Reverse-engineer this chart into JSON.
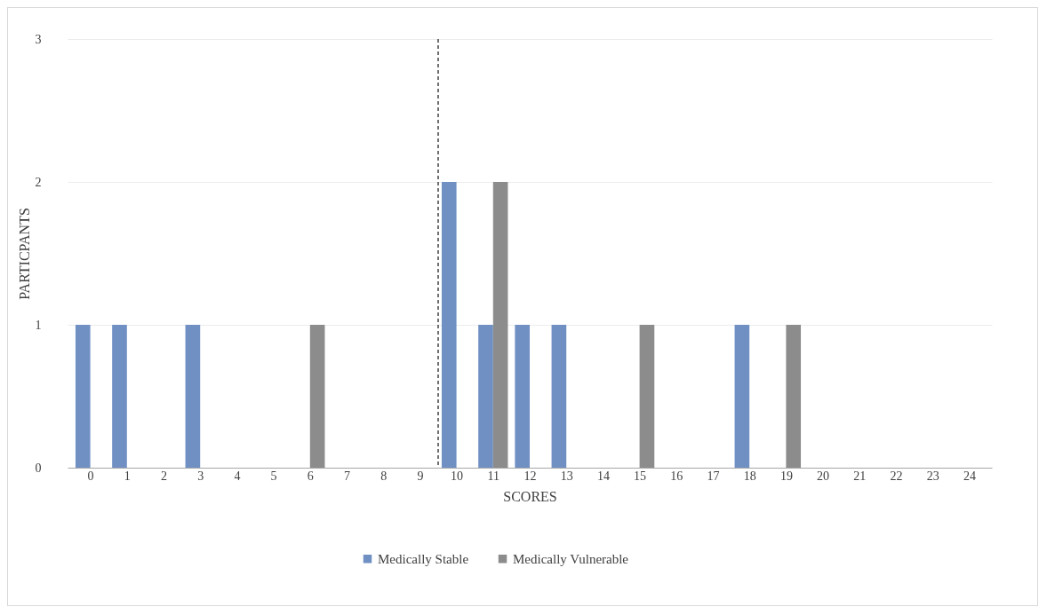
{
  "chart_data": {
    "type": "bar",
    "xlabel": "SCORES",
    "ylabel": "PARTICPANTS",
    "x": [
      0,
      1,
      2,
      3,
      4,
      5,
      6,
      7,
      8,
      9,
      10,
      11,
      12,
      13,
      14,
      15,
      16,
      17,
      18,
      19,
      20,
      21,
      22,
      23,
      24
    ],
    "series": [
      {
        "name": "Medically Stable",
        "color": "#7090c4",
        "values": [
          1,
          1,
          0,
          1,
          0,
          0,
          0,
          0,
          0,
          0,
          2,
          1,
          1,
          1,
          0,
          0,
          0,
          0,
          1,
          0,
          0,
          0,
          0,
          0,
          0
        ]
      },
      {
        "name": "Medically Vulnerable",
        "color": "#8c8c8c",
        "values": [
          0,
          0,
          0,
          0,
          0,
          0,
          1,
          0,
          0,
          0,
          0,
          2,
          0,
          0,
          0,
          1,
          0,
          0,
          0,
          1,
          0,
          0,
          0,
          0,
          0
        ]
      }
    ],
    "xlim": [
      -0.5,
      24.5
    ],
    "xticks": [
      0,
      1,
      2,
      3,
      4,
      5,
      6,
      7,
      8,
      9,
      10,
      11,
      12,
      13,
      14,
      15,
      16,
      17,
      18,
      19,
      20,
      21,
      22,
      23,
      24
    ],
    "ylim": [
      0,
      3
    ],
    "yticks": [
      0,
      1,
      2,
      3
    ],
    "grid": "y",
    "legend": "bottom",
    "ref_lines": [
      {
        "axis": "x",
        "value": 9.5,
        "line_style": "dashed",
        "color": "#404040"
      }
    ]
  }
}
